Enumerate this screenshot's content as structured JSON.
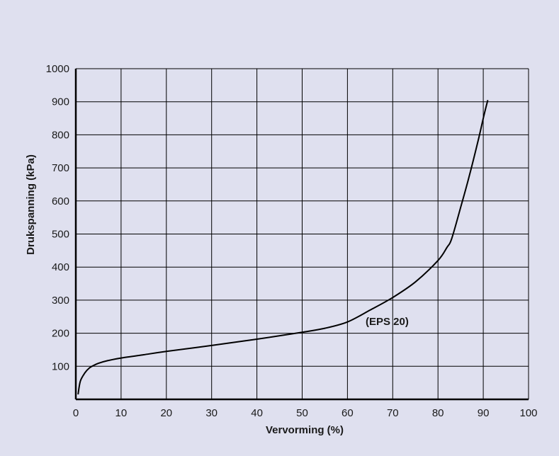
{
  "chart_data": {
    "type": "line",
    "title": "",
    "xlabel": "Vervorming (%)",
    "ylabel": "Drukspanning (kPa)",
    "xlim": [
      0,
      100
    ],
    "ylim": [
      0,
      1000
    ],
    "x_ticks": [
      "0",
      "10",
      "20",
      "30",
      "40",
      "50",
      "60",
      "70",
      "80",
      "90",
      "100"
    ],
    "y_ticks": [
      "100",
      "200",
      "300",
      "400",
      "500",
      "600",
      "700",
      "800",
      "900",
      "1000"
    ],
    "grid": true,
    "background_color": "#dfe0ef",
    "line_color": "#000000",
    "series": [
      {
        "x": [
          0.5,
          1,
          2,
          3,
          4,
          5,
          7,
          10,
          15,
          20,
          30,
          40,
          50,
          55,
          60,
          65,
          70,
          75,
          80,
          82,
          83,
          85,
          87,
          89,
          90,
          91
        ],
        "y": [
          15,
          55,
          80,
          95,
          103,
          109,
          117,
          125,
          135,
          145,
          163,
          182,
          203,
          215,
          234,
          270,
          308,
          355,
          420,
          460,
          485,
          580,
          680,
          790,
          850,
          905
        ]
      }
    ],
    "annotations": [
      {
        "text": "(EPS 20)",
        "x": 64,
        "y": 238
      }
    ]
  }
}
